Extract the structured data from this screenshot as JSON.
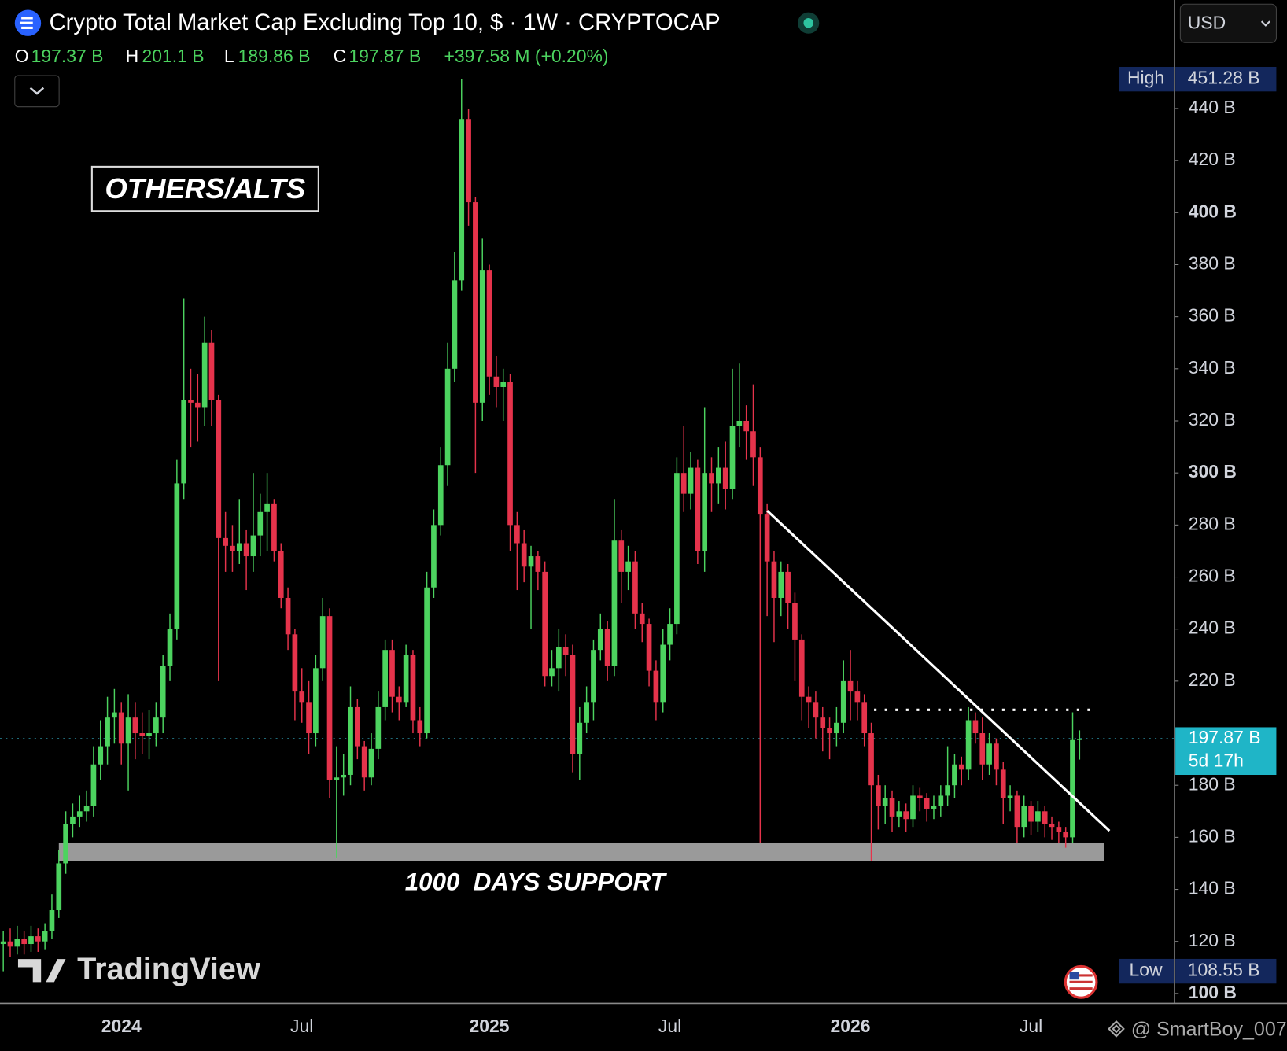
{
  "chart_data": {
    "type": "candlestick",
    "title": "Crypto Total Market Cap Excluding Top 10, $ · 1W · CRYPTOCAP",
    "ohlc_header": [
      {
        "key": "O",
        "label": "197.37 B"
      },
      {
        "key": "H",
        "label": "201.1 B"
      },
      {
        "key": "L",
        "label": "189.86 B"
      },
      {
        "key": "C",
        "label": "197.87 B"
      }
    ],
    "change": "+397.58 M (+0.20%)",
    "currency": "USD",
    "up_color": "#4cd35f",
    "down_color": "#e5334b",
    "categories": [
      null,
      null,
      null,
      null,
      null,
      null,
      null,
      null,
      null,
      null,
      null,
      null,
      null,
      null,
      null,
      null,
      null,
      "2024",
      null,
      null,
      null,
      null,
      null,
      null,
      null,
      null,
      null,
      null,
      null,
      null,
      null,
      null,
      null,
      null,
      null,
      null,
      null,
      null,
      null,
      null,
      null,
      null,
      null,
      "Jul",
      null,
      null,
      null,
      null,
      null,
      null,
      null,
      null,
      null,
      null,
      null,
      null,
      null,
      null,
      null,
      null,
      null,
      null,
      null,
      null,
      null,
      null,
      null,
      null,
      null,
      null,
      "2025",
      null,
      null,
      null,
      null,
      null,
      null,
      null,
      null,
      null,
      null,
      null,
      null,
      null,
      null,
      null,
      null,
      null,
      null,
      null,
      null,
      null,
      null,
      null,
      null,
      null,
      "Jul",
      null,
      null,
      null,
      null,
      null,
      null,
      null,
      null,
      null,
      null,
      null,
      null,
      null,
      null,
      null,
      null,
      null,
      null,
      null,
      null,
      null,
      null,
      null,
      null,
      null,
      "2026",
      null,
      null,
      null,
      null,
      null,
      null,
      null,
      null,
      null,
      null,
      null,
      null,
      null,
      null,
      null,
      null,
      null,
      null,
      null,
      null,
      null,
      null,
      null,
      null,
      null,
      "Jul",
      null,
      null,
      null,
      null,
      null,
      null,
      null
    ],
    "open": [
      119,
      120,
      118,
      121,
      119,
      122,
      120,
      124,
      132,
      150,
      165,
      168,
      170,
      172,
      188,
      195,
      206,
      208,
      196,
      206,
      200,
      199,
      200,
      206,
      226,
      240,
      296,
      328,
      327,
      325,
      350,
      328,
      275,
      272,
      270,
      273,
      268,
      276,
      285,
      288,
      270,
      252,
      238,
      216,
      212,
      200,
      225,
      245,
      182,
      183,
      184,
      210,
      195,
      183,
      194,
      210,
      232,
      214,
      212,
      230,
      205,
      200,
      256,
      280,
      303,
      340,
      374,
      436,
      404,
      327,
      378,
      337,
      333,
      335,
      280,
      273,
      264,
      268,
      262,
      222,
      225,
      233,
      230,
      192,
      204,
      212,
      232,
      240,
      226,
      274,
      262,
      266,
      246,
      242,
      224,
      212,
      234,
      242,
      300,
      292,
      302,
      270,
      300,
      296,
      302,
      294,
      318,
      320,
      316,
      306,
      284,
      266,
      252,
      262,
      250,
      236,
      214,
      212,
      206,
      202,
      200,
      204,
      220,
      216,
      212,
      200,
      180,
      172,
      175,
      168,
      170,
      167,
      176,
      175,
      171,
      172,
      176,
      180,
      188,
      186,
      205,
      200,
      188,
      196,
      186,
      175,
      176,
      164,
      172,
      166,
      170,
      165,
      164,
      162,
      160,
      197.37
    ],
    "high": [
      124,
      125,
      126,
      124,
      126,
      125,
      127,
      138,
      155,
      170,
      173,
      176,
      178,
      195,
      205,
      214,
      217,
      212,
      215,
      212,
      208,
      209,
      212,
      230,
      246,
      305,
      367,
      340,
      338,
      360,
      355,
      330,
      285,
      280,
      290,
      278,
      300,
      292,
      300,
      290,
      273,
      256,
      240,
      225,
      220,
      230,
      252,
      248,
      195,
      192,
      218,
      213,
      197,
      200,
      216,
      236,
      236,
      218,
      234,
      232,
      210,
      262,
      286,
      310,
      350,
      385,
      451.28,
      440,
      406,
      390,
      380,
      345,
      340,
      338,
      285,
      278,
      272,
      270,
      266,
      232,
      240,
      238,
      234,
      210,
      218,
      236,
      246,
      243,
      290,
      278,
      272,
      270,
      250,
      244,
      228,
      240,
      248,
      306,
      318,
      308,
      305,
      325,
      306,
      310,
      312,
      340,
      342,
      326,
      334,
      310,
      288,
      270,
      266,
      265,
      254,
      238,
      218,
      216,
      210,
      206,
      210,
      228,
      232,
      220,
      215,
      204,
      184,
      180,
      178,
      174,
      173,
      180,
      179,
      177,
      176,
      180,
      195,
      192,
      191,
      210,
      208,
      206,
      200,
      198,
      189,
      180,
      178,
      176,
      174,
      174,
      172,
      168,
      166,
      164,
      208,
      201.1
    ],
    "low": [
      108.55,
      114,
      115,
      115,
      116,
      116,
      117,
      121,
      129,
      146,
      160,
      164,
      166,
      168,
      182,
      188,
      196,
      188,
      178,
      190,
      192,
      190,
      195,
      200,
      220,
      236,
      290,
      310,
      312,
      318,
      318,
      220,
      262,
      262,
      265,
      255,
      262,
      268,
      270,
      266,
      248,
      232,
      205,
      204,
      192,
      195,
      220,
      175,
      152,
      176,
      180,
      190,
      178,
      180,
      190,
      205,
      208,
      205,
      210,
      200,
      195,
      198,
      252,
      276,
      295,
      335,
      370,
      395,
      300,
      320,
      330,
      325,
      320,
      270,
      255,
      258,
      240,
      255,
      218,
      218,
      216,
      222,
      185,
      182,
      200,
      205,
      228,
      220,
      222,
      250,
      255,
      240,
      235,
      218,
      205,
      208,
      228,
      238,
      285,
      286,
      265,
      262,
      285,
      288,
      286,
      290,
      310,
      305,
      295,
      158,
      245,
      235,
      245,
      240,
      220,
      205,
      202,
      198,
      193,
      190,
      195,
      200,
      205,
      205,
      195,
      151,
      163,
      165,
      162,
      164,
      162,
      164,
      170,
      166,
      167,
      168,
      172,
      175,
      180,
      182,
      196,
      182,
      184,
      180,
      165,
      170,
      158,
      160,
      161,
      162,
      160,
      159,
      158,
      156,
      158,
      189.86
    ],
    "close": [
      120,
      118,
      121,
      119,
      122,
      120,
      124,
      132,
      150,
      165,
      168,
      170,
      172,
      188,
      195,
      206,
      208,
      196,
      206,
      200,
      199,
      200,
      206,
      226,
      240,
      296,
      328,
      327,
      325,
      350,
      328,
      275,
      272,
      270,
      273,
      268,
      276,
      285,
      288,
      270,
      252,
      238,
      216,
      212,
      200,
      225,
      245,
      182,
      183,
      184,
      210,
      195,
      183,
      194,
      210,
      232,
      214,
      212,
      230,
      205,
      200,
      256,
      280,
      303,
      340,
      374,
      436,
      404,
      327,
      378,
      337,
      333,
      335,
      280,
      273,
      264,
      268,
      262,
      222,
      225,
      233,
      230,
      192,
      204,
      212,
      232,
      240,
      226,
      274,
      262,
      266,
      246,
      242,
      224,
      212,
      234,
      242,
      300,
      292,
      302,
      270,
      300,
      296,
      302,
      294,
      318,
      320,
      316,
      306,
      284,
      266,
      252,
      262,
      250,
      236,
      214,
      212,
      206,
      202,
      200,
      204,
      220,
      216,
      212,
      200,
      180,
      172,
      175,
      168,
      170,
      167,
      176,
      175,
      171,
      172,
      176,
      180,
      188,
      186,
      205,
      200,
      188,
      196,
      186,
      175,
      176,
      164,
      172,
      166,
      170,
      165,
      164,
      162,
      160,
      197.37,
      197.87
    ],
    "ylim": [
      96.2,
      481.7
    ],
    "yticks": [
      {
        "value": 100,
        "label": "100 B"
      },
      {
        "value": 120,
        "label": "120 B"
      },
      {
        "value": 140,
        "label": "140 B"
      },
      {
        "value": 160,
        "label": "160 B"
      },
      {
        "value": 180,
        "label": "180 B"
      },
      {
        "value": 220,
        "label": "220 B"
      },
      {
        "value": 240,
        "label": "240 B"
      },
      {
        "value": 260,
        "label": "260 B"
      },
      {
        "value": 280,
        "label": "280 B"
      },
      {
        "value": 300,
        "label": "300 B"
      },
      {
        "value": 320,
        "label": "320 B"
      },
      {
        "value": 340,
        "label": "340 B"
      },
      {
        "value": 360,
        "label": "360 B"
      },
      {
        "value": 380,
        "label": "380 B"
      },
      {
        "value": 400,
        "label": "400 B"
      },
      {
        "value": 420,
        "label": "420 B"
      },
      {
        "value": 440,
        "label": "440 B"
      }
    ],
    "high_marker": {
      "text": "High",
      "value": 451.28,
      "label": "451.28 B"
    },
    "low_marker": {
      "text": "Low",
      "value": 108.55,
      "label": "108.55 B"
    },
    "last_price": {
      "value": 197.87,
      "label": "197.87 B",
      "countdown": "5d 17h"
    },
    "support_zone": {
      "label": "1000  DAYS SUPPORT",
      "x": [
        8,
        158.5
      ],
      "ylim": [
        151,
        158
      ]
    },
    "trendline": {
      "x": [
        110,
        159.3
      ],
      "y": [
        285.5,
        162.5
      ]
    },
    "resistance": {
      "x": [
        125.4,
        156.5
      ],
      "y": 209
    },
    "annotation": "OTHERS/ALTS",
    "brand": "TradingView",
    "watermark": "@ SmartBoy_007"
  }
}
